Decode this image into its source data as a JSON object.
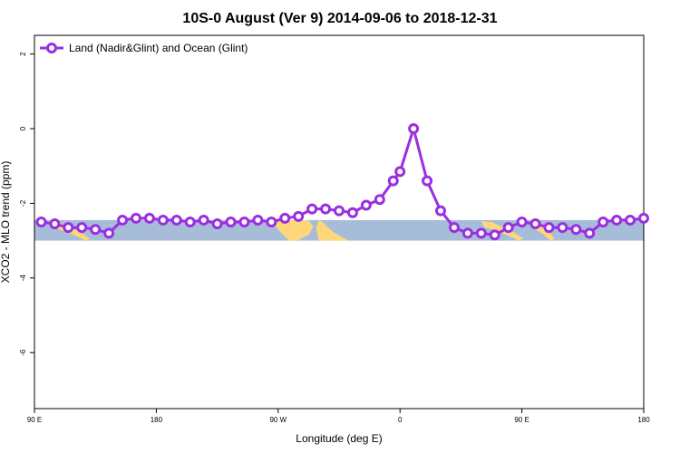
{
  "chart_data": {
    "type": "line",
    "title": "10S-0 August (Ver 9)   2014-09-06 to 2018-12-31",
    "xlabel": "Longitude (deg E)",
    "ylabel": "XCO2 - MLO trend (ppm)",
    "xlim": [
      90,
      540
    ],
    "ylim": [
      -7.5,
      2.5
    ],
    "x_ticks": [
      {
        "value": 90,
        "label": "90 E"
      },
      {
        "value": 180,
        "label": "180"
      },
      {
        "value": 270,
        "label": "90 W"
      },
      {
        "value": 360,
        "label": "0"
      },
      {
        "value": 450,
        "label": "90 E"
      },
      {
        "value": 540,
        "label": "180"
      }
    ],
    "y_ticks": [
      {
        "value": 2,
        "label": "2"
      },
      {
        "value": 0,
        "label": "0"
      },
      {
        "value": -2,
        "label": "-2"
      },
      {
        "value": -4,
        "label": "-4"
      },
      {
        "value": -6,
        "label": "-6"
      }
    ],
    "grid": false,
    "legend_position": "top-left",
    "background_band": {
      "y_range": [
        -3.0,
        -2.45
      ],
      "ocean_color": "#a7bcd9",
      "land_color": "#fdd77a"
    },
    "series": [
      {
        "name": "Land (Nadir&Glint) and Ocean (Glint)",
        "color": "#9b2fe0",
        "x": [
          95,
          105,
          115,
          125,
          135,
          145,
          155,
          165,
          175,
          185,
          195,
          205,
          215,
          225,
          235,
          245,
          255,
          265,
          275,
          285,
          295,
          305,
          315,
          325,
          335,
          345,
          355,
          360,
          370,
          380,
          390,
          400,
          410,
          420,
          430,
          440,
          450,
          460,
          470,
          480,
          490,
          500,
          510,
          520,
          530,
          540
        ],
        "y": [
          -2.5,
          -2.55,
          -2.65,
          -2.65,
          -2.7,
          -2.8,
          -2.45,
          -2.4,
          -2.4,
          -2.45,
          -2.45,
          -2.5,
          -2.45,
          -2.55,
          -2.5,
          -2.5,
          -2.45,
          -2.5,
          -2.4,
          -2.35,
          -2.15,
          -2.15,
          -2.2,
          -2.25,
          -2.05,
          -1.9,
          -1.4,
          -1.15,
          0.0,
          -1.4,
          -2.2,
          -2.65,
          -2.8,
          -2.8,
          -2.85,
          -2.65,
          -2.5,
          -2.55,
          -2.65,
          -2.65,
          -2.7,
          -2.8,
          -2.5,
          -2.45,
          -2.45,
          -2.4
        ]
      }
    ]
  }
}
